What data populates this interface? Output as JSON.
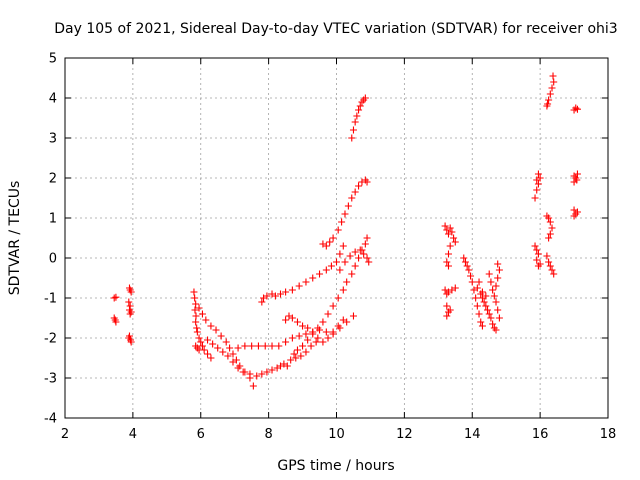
{
  "chart_data": {
    "type": "scatter",
    "title": "Day 105 of 2021, Sidereal Day-to-day VTEC variation (SDTVAR) for receiver ohi3",
    "xlabel": "GPS time / hours",
    "ylabel": "SDTVAR / TECUs",
    "xlim": [
      2,
      18
    ],
    "ylim": [
      -4,
      5
    ],
    "xticks": [
      2,
      4,
      6,
      8,
      10,
      12,
      14,
      16,
      18
    ],
    "yticks": [
      -4,
      -3,
      -2,
      -1,
      0,
      1,
      2,
      3,
      4,
      5
    ],
    "grid": true,
    "marker": "plus",
    "marker_color": "#ff0000",
    "series": [
      {
        "points": [
          [
            3.45,
            -1.0
          ],
          [
            3.5,
            -0.98
          ],
          [
            3.45,
            -1.5
          ],
          [
            3.5,
            -1.6
          ],
          [
            3.48,
            -1.55
          ],
          [
            3.9,
            -0.75
          ],
          [
            3.92,
            -0.8
          ],
          [
            3.95,
            -0.85
          ],
          [
            3.88,
            -1.1
          ],
          [
            3.92,
            -1.2
          ],
          [
            3.9,
            -1.3
          ],
          [
            3.95,
            -1.35
          ],
          [
            3.92,
            -1.4
          ],
          [
            3.9,
            -1.95
          ],
          [
            3.93,
            -2.05
          ],
          [
            3.95,
            -2.1
          ],
          [
            3.88,
            -2.0
          ],
          [
            5.8,
            -0.85
          ],
          [
            5.82,
            -1.0
          ],
          [
            5.85,
            -1.15
          ],
          [
            5.83,
            -1.3
          ],
          [
            5.86,
            -1.45
          ],
          [
            5.85,
            -1.6
          ],
          [
            5.88,
            -1.75
          ],
          [
            5.9,
            -1.85
          ],
          [
            5.95,
            -2.0
          ],
          [
            6.0,
            -2.1
          ],
          [
            6.05,
            -2.2
          ],
          [
            6.1,
            -2.3
          ],
          [
            6.2,
            -2.4
          ],
          [
            6.3,
            -2.5
          ],
          [
            5.85,
            -2.2
          ],
          [
            5.9,
            -2.25
          ],
          [
            5.95,
            -2.3
          ],
          [
            5.95,
            -1.25
          ],
          [
            6.05,
            -1.4
          ],
          [
            6.15,
            -1.55
          ],
          [
            6.3,
            -1.7
          ],
          [
            6.45,
            -1.8
          ],
          [
            6.6,
            -1.95
          ],
          [
            6.75,
            -2.1
          ],
          [
            6.85,
            -2.25
          ],
          [
            6.95,
            -2.4
          ],
          [
            7.05,
            -2.55
          ],
          [
            7.15,
            -2.7
          ],
          [
            7.3,
            -2.85
          ],
          [
            7.45,
            -3.0
          ],
          [
            7.55,
            -3.2
          ],
          [
            6.2,
            -2.05
          ],
          [
            6.35,
            -2.15
          ],
          [
            6.5,
            -2.25
          ],
          [
            6.65,
            -2.35
          ],
          [
            6.8,
            -2.45
          ],
          [
            6.95,
            -2.6
          ],
          [
            7.1,
            -2.75
          ],
          [
            7.25,
            -2.85
          ],
          [
            7.45,
            -2.9
          ],
          [
            7.65,
            -2.95
          ],
          [
            7.8,
            -2.9
          ],
          [
            7.95,
            -2.85
          ],
          [
            8.1,
            -2.8
          ],
          [
            8.25,
            -2.75
          ],
          [
            8.35,
            -2.7
          ],
          [
            8.45,
            -2.65
          ],
          [
            7.1,
            -2.25
          ],
          [
            7.3,
            -2.2
          ],
          [
            7.5,
            -2.2
          ],
          [
            7.7,
            -2.2
          ],
          [
            7.9,
            -2.2
          ],
          [
            8.1,
            -2.2
          ],
          [
            8.3,
            -2.2
          ],
          [
            8.5,
            -2.1
          ],
          [
            8.7,
            -2.0
          ],
          [
            8.9,
            -1.95
          ],
          [
            9.1,
            -1.9
          ],
          [
            9.3,
            -1.85
          ],
          [
            9.5,
            -1.8
          ],
          [
            9.7,
            -1.85
          ],
          [
            9.9,
            -1.9
          ],
          [
            10.1,
            -1.75
          ],
          [
            10.3,
            -1.6
          ],
          [
            10.5,
            -1.45
          ],
          [
            7.8,
            -1.1
          ],
          [
            7.85,
            -1.0
          ],
          [
            7.95,
            -0.95
          ],
          [
            8.1,
            -0.9
          ],
          [
            8.2,
            -0.95
          ],
          [
            8.35,
            -0.9
          ],
          [
            8.5,
            -0.85
          ],
          [
            8.7,
            -0.8
          ],
          [
            8.9,
            -0.7
          ],
          [
            9.1,
            -0.6
          ],
          [
            9.3,
            -0.5
          ],
          [
            9.5,
            -0.4
          ],
          [
            9.7,
            -0.3
          ],
          [
            9.85,
            -0.2
          ],
          [
            10.0,
            -0.1
          ],
          [
            10.1,
            0.1
          ],
          [
            10.2,
            0.3
          ],
          [
            9.6,
            0.35
          ],
          [
            9.7,
            0.3
          ],
          [
            9.8,
            0.4
          ],
          [
            9.9,
            0.5
          ],
          [
            10.05,
            0.7
          ],
          [
            10.15,
            0.9
          ],
          [
            10.25,
            1.1
          ],
          [
            10.35,
            1.3
          ],
          [
            10.45,
            1.5
          ],
          [
            10.55,
            1.65
          ],
          [
            10.65,
            1.8
          ],
          [
            10.75,
            1.9
          ],
          [
            10.85,
            1.95
          ],
          [
            10.9,
            1.9
          ],
          [
            8.55,
            -2.7
          ],
          [
            8.65,
            -2.55
          ],
          [
            8.75,
            -2.4
          ],
          [
            8.85,
            -2.3
          ],
          [
            9.0,
            -2.2
          ],
          [
            9.15,
            -2.05
          ],
          [
            9.3,
            -1.9
          ],
          [
            9.45,
            -1.75
          ],
          [
            9.6,
            -1.6
          ],
          [
            9.75,
            -1.4
          ],
          [
            9.9,
            -1.2
          ],
          [
            10.05,
            -1.0
          ],
          [
            10.2,
            -0.8
          ],
          [
            10.3,
            -0.6
          ],
          [
            10.45,
            -0.4
          ],
          [
            10.55,
            -0.2
          ],
          [
            10.65,
            0.0
          ],
          [
            10.75,
            0.2
          ],
          [
            10.85,
            0.35
          ],
          [
            10.9,
            0.5
          ],
          [
            8.5,
            -1.55
          ],
          [
            8.6,
            -1.45
          ],
          [
            8.7,
            -1.5
          ],
          [
            8.85,
            -1.6
          ],
          [
            9.0,
            -1.7
          ],
          [
            9.15,
            -1.75
          ],
          [
            9.3,
            -1.85
          ],
          [
            9.45,
            -2.0
          ],
          [
            9.6,
            -2.1
          ],
          [
            9.75,
            -2.0
          ],
          [
            9.9,
            -1.85
          ],
          [
            10.05,
            -1.7
          ],
          [
            10.2,
            -1.55
          ],
          [
            8.8,
            -2.5
          ],
          [
            8.95,
            -2.45
          ],
          [
            9.1,
            -2.35
          ],
          [
            9.25,
            -2.2
          ],
          [
            9.4,
            -2.1
          ],
          [
            10.1,
            -0.3
          ],
          [
            10.25,
            -0.1
          ],
          [
            10.4,
            0.05
          ],
          [
            10.55,
            0.15
          ],
          [
            10.7,
            0.2
          ],
          [
            10.8,
            0.1
          ],
          [
            10.9,
            0.0
          ],
          [
            10.95,
            -0.1
          ],
          [
            10.45,
            3.0
          ],
          [
            10.5,
            3.2
          ],
          [
            10.55,
            3.4
          ],
          [
            10.6,
            3.55
          ],
          [
            10.65,
            3.7
          ],
          [
            10.7,
            3.8
          ],
          [
            10.75,
            3.9
          ],
          [
            10.8,
            3.95
          ],
          [
            10.85,
            4.0
          ],
          [
            13.2,
            0.8
          ],
          [
            13.25,
            0.7
          ],
          [
            13.3,
            0.6
          ],
          [
            13.35,
            0.75
          ],
          [
            13.4,
            0.65
          ],
          [
            13.45,
            0.5
          ],
          [
            13.5,
            0.4
          ],
          [
            13.35,
            0.3
          ],
          [
            13.3,
            0.1
          ],
          [
            13.25,
            -0.1
          ],
          [
            13.3,
            -0.2
          ],
          [
            13.2,
            -0.8
          ],
          [
            13.25,
            -0.9
          ],
          [
            13.3,
            -0.85
          ],
          [
            13.4,
            -0.8
          ],
          [
            13.5,
            -0.75
          ],
          [
            13.25,
            -1.2
          ],
          [
            13.3,
            -1.35
          ],
          [
            13.25,
            -1.45
          ],
          [
            13.35,
            -1.3
          ],
          [
            13.75,
            0.0
          ],
          [
            13.8,
            -0.1
          ],
          [
            13.85,
            -0.2
          ],
          [
            13.9,
            -0.3
          ],
          [
            13.95,
            -0.45
          ],
          [
            14.0,
            -0.6
          ],
          [
            14.05,
            -0.8
          ],
          [
            14.1,
            -1.0
          ],
          [
            14.15,
            -1.2
          ],
          [
            14.2,
            -1.4
          ],
          [
            14.25,
            -1.6
          ],
          [
            14.3,
            -1.7
          ],
          [
            14.25,
            -0.9
          ],
          [
            14.3,
            -1.0
          ],
          [
            14.35,
            -1.1
          ],
          [
            14.4,
            -1.2
          ],
          [
            14.45,
            -1.3
          ],
          [
            14.5,
            -1.4
          ],
          [
            14.55,
            -1.5
          ],
          [
            14.6,
            -1.65
          ],
          [
            14.65,
            -1.75
          ],
          [
            14.7,
            -1.8
          ],
          [
            14.5,
            -0.4
          ],
          [
            14.55,
            -0.6
          ],
          [
            14.6,
            -0.8
          ],
          [
            14.65,
            -0.95
          ],
          [
            14.7,
            -0.7
          ],
          [
            14.75,
            -0.5
          ],
          [
            14.8,
            -0.3
          ],
          [
            14.75,
            -0.15
          ],
          [
            14.7,
            -1.1
          ],
          [
            14.75,
            -1.3
          ],
          [
            14.8,
            -1.5
          ],
          [
            14.2,
            -0.6
          ],
          [
            14.15,
            -0.75
          ],
          [
            14.3,
            -0.85
          ],
          [
            14.4,
            -0.95
          ],
          [
            15.85,
            1.5
          ],
          [
            15.9,
            1.7
          ],
          [
            15.95,
            1.85
          ],
          [
            15.9,
            1.95
          ],
          [
            16.0,
            2.0
          ],
          [
            15.95,
            2.1
          ],
          [
            15.85,
            0.3
          ],
          [
            15.9,
            0.2
          ],
          [
            15.95,
            0.1
          ],
          [
            15.9,
            -0.05
          ],
          [
            16.0,
            -0.15
          ],
          [
            15.95,
            -0.2
          ],
          [
            16.2,
            3.8
          ],
          [
            16.25,
            3.95
          ],
          [
            16.3,
            4.1
          ],
          [
            16.35,
            4.25
          ],
          [
            16.4,
            4.4
          ],
          [
            16.38,
            4.55
          ],
          [
            16.22,
            3.85
          ],
          [
            16.2,
            1.05
          ],
          [
            16.25,
            1.0
          ],
          [
            16.3,
            0.9
          ],
          [
            16.35,
            0.75
          ],
          [
            16.3,
            0.6
          ],
          [
            16.25,
            0.5
          ],
          [
            16.2,
            0.05
          ],
          [
            16.25,
            -0.1
          ],
          [
            16.3,
            -0.2
          ],
          [
            16.35,
            -0.3
          ],
          [
            16.4,
            -0.4
          ],
          [
            17.0,
            3.7
          ],
          [
            17.05,
            3.75
          ],
          [
            17.1,
            3.72
          ],
          [
            17.0,
            1.9
          ],
          [
            17.05,
            2.0
          ],
          [
            17.1,
            2.1
          ],
          [
            17.0,
            2.05
          ],
          [
            17.08,
            1.95
          ],
          [
            17.0,
            1.05
          ],
          [
            17.05,
            1.1
          ],
          [
            17.1,
            1.15
          ],
          [
            17.0,
            1.2
          ]
        ]
      }
    ]
  }
}
